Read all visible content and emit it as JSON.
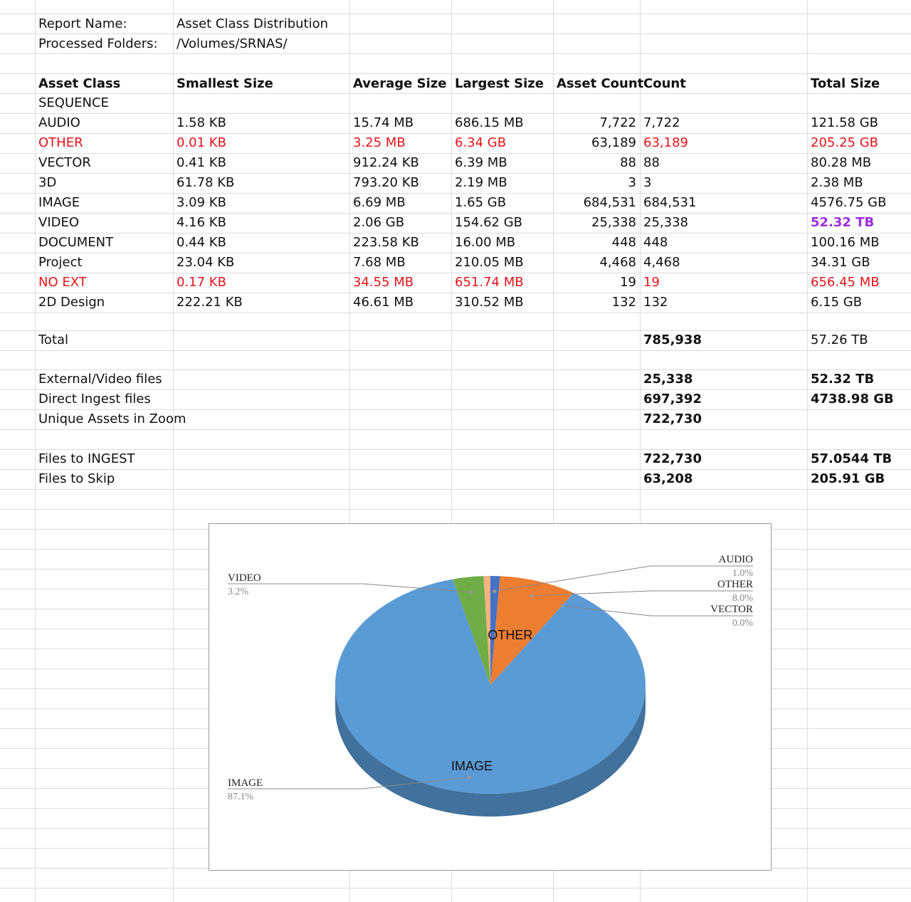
{
  "header": {
    "report_name_label": "Report Name:",
    "report_name_value": "Asset Class Distribution",
    "folders_label": "Processed Folders:",
    "folders_value": "/Volumes/SRNAS/"
  },
  "table": {
    "columns": [
      "Asset Class",
      "Smallest Size",
      "Average Size",
      "Largest Size",
      "Asset Count",
      "Count",
      "Total Size"
    ],
    "rows": [
      {
        "class": "SEQUENCE",
        "smallest": "",
        "average": "",
        "largest": "",
        "asset_count": "",
        "count": "",
        "total": ""
      },
      {
        "class": "AUDIO",
        "smallest": "1.58 KB",
        "average": "15.74 MB",
        "largest": "686.15 MB",
        "asset_count": "7,722",
        "count": "7,722",
        "total": "121.58 GB"
      },
      {
        "class": "OTHER",
        "smallest": "0.01 KB",
        "average": "3.25 MB",
        "largest": "6.34 GB",
        "asset_count": "63,189",
        "count": "63,189",
        "total": "205.25 GB"
      },
      {
        "class": "VECTOR",
        "smallest": "0.41 KB",
        "average": "912.24 KB",
        "largest": "6.39 MB",
        "asset_count": "88",
        "count": "88",
        "total": "80.28 MB"
      },
      {
        "class": "3D",
        "smallest": "61.78 KB",
        "average": "793.20 KB",
        "largest": "2.19 MB",
        "asset_count": "3",
        "count": "3",
        "total": "2.38 MB"
      },
      {
        "class": "IMAGE",
        "smallest": "3.09 KB",
        "average": "6.69 MB",
        "largest": "1.65 GB",
        "asset_count": "684,531",
        "count": "684,531",
        "total": "4576.75 GB"
      },
      {
        "class": "VIDEO",
        "smallest": "4.16 KB",
        "average": "2.06 GB",
        "largest": "154.62 GB",
        "asset_count": "25,338",
        "count": "25,338",
        "total": "52.32 TB"
      },
      {
        "class": "DOCUMENT",
        "smallest": "0.44 KB",
        "average": "223.58 KB",
        "largest": "16.00 MB",
        "asset_count": "448",
        "count": "448",
        "total": "100.16 MB"
      },
      {
        "class": "Project",
        "smallest": "23.04 KB",
        "average": "7.68 MB",
        "largest": "210.05 MB",
        "asset_count": "4,468",
        "count": "4,468",
        "total": "34.31 GB"
      },
      {
        "class": "NO EXT",
        "smallest": "0.17 KB",
        "average": "34.55 MB",
        "largest": "651.74 MB",
        "asset_count": "19",
        "count": "19",
        "total": "656.45 MB"
      },
      {
        "class": "2D Design",
        "smallest": "222.21 KB",
        "average": "46.61 MB",
        "largest": "310.52 MB",
        "asset_count": "132",
        "count": "132",
        "total": "6.15 GB"
      }
    ]
  },
  "summary": {
    "total": {
      "label": "Total",
      "count": "785,938",
      "size": "57.26 TB"
    },
    "external": {
      "label": "External/Video files",
      "count": "25,338",
      "size": "52.32 TB"
    },
    "direct": {
      "label": "Direct Ingest files",
      "count": "697,392",
      "size": "4738.98 GB"
    },
    "unique": {
      "label": "Unique Assets in Zoom",
      "count": "722,730"
    },
    "ingest": {
      "label": "Files to INGEST",
      "count": "722,730",
      "size": "57.0544 TB"
    },
    "skip": {
      "label": "Files to Skip",
      "count": "63,208",
      "size": "205.91 GB"
    }
  },
  "colors": {
    "red_text": "#e3151a",
    "purple_text": "#9b2ee0",
    "image_slice": "#5b9bd5",
    "image_side": "#41719c",
    "other_slice": "#ed7d31",
    "video_slice": "#70ad47",
    "audio_slice": "#4472c4",
    "small_slice": "#f4b183"
  },
  "chart_data": {
    "type": "pie",
    "title": "",
    "slices": [
      {
        "name": "AUDIO",
        "value": 1.0,
        "label": "1.0%",
        "color": "#4472c4"
      },
      {
        "name": "OTHER",
        "value": 8.0,
        "label": "8.0%",
        "color": "#ed7d31"
      },
      {
        "name": "VECTOR",
        "value": 0.0,
        "label": "0.0%",
        "color": "#a5a5a5"
      },
      {
        "name": "IMAGE",
        "value": 87.1,
        "label": "87.1%",
        "color": "#5b9bd5"
      },
      {
        "name": "VIDEO",
        "value": 3.2,
        "label": "3.2%",
        "color": "#70ad47"
      },
      {
        "name": "",
        "value": 0.7,
        "label": "",
        "color": "#f4b183"
      }
    ],
    "inner_labels": [
      "OTHER",
      "IMAGE"
    ],
    "style": "3d"
  }
}
